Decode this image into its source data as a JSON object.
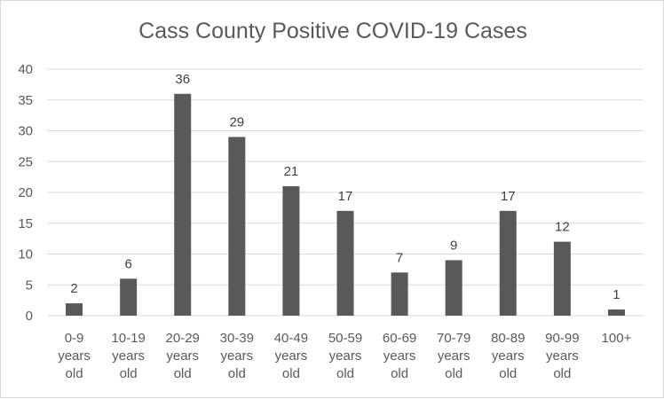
{
  "chart_data": {
    "type": "bar",
    "title": "Cass County Positive COVID-19 Cases",
    "categories": [
      "0-9 years old",
      "10-19 years old",
      "20-29 years old",
      "30-39 years old",
      "40-49 years old",
      "50-59 years old",
      "60-69 years old",
      "70-79 years old",
      "80-89 years old",
      "90-99 years old",
      "100+"
    ],
    "values": [
      2,
      6,
      36,
      29,
      21,
      17,
      7,
      9,
      17,
      12,
      1
    ],
    "ylim": [
      0,
      40
    ],
    "yticks": [
      0,
      5,
      10,
      15,
      20,
      25,
      30,
      35,
      40
    ],
    "xlabel": "",
    "ylabel": "",
    "grid": true,
    "data_labels": true,
    "bar_color": "#595959",
    "grid_color": "#d9d9d9"
  }
}
